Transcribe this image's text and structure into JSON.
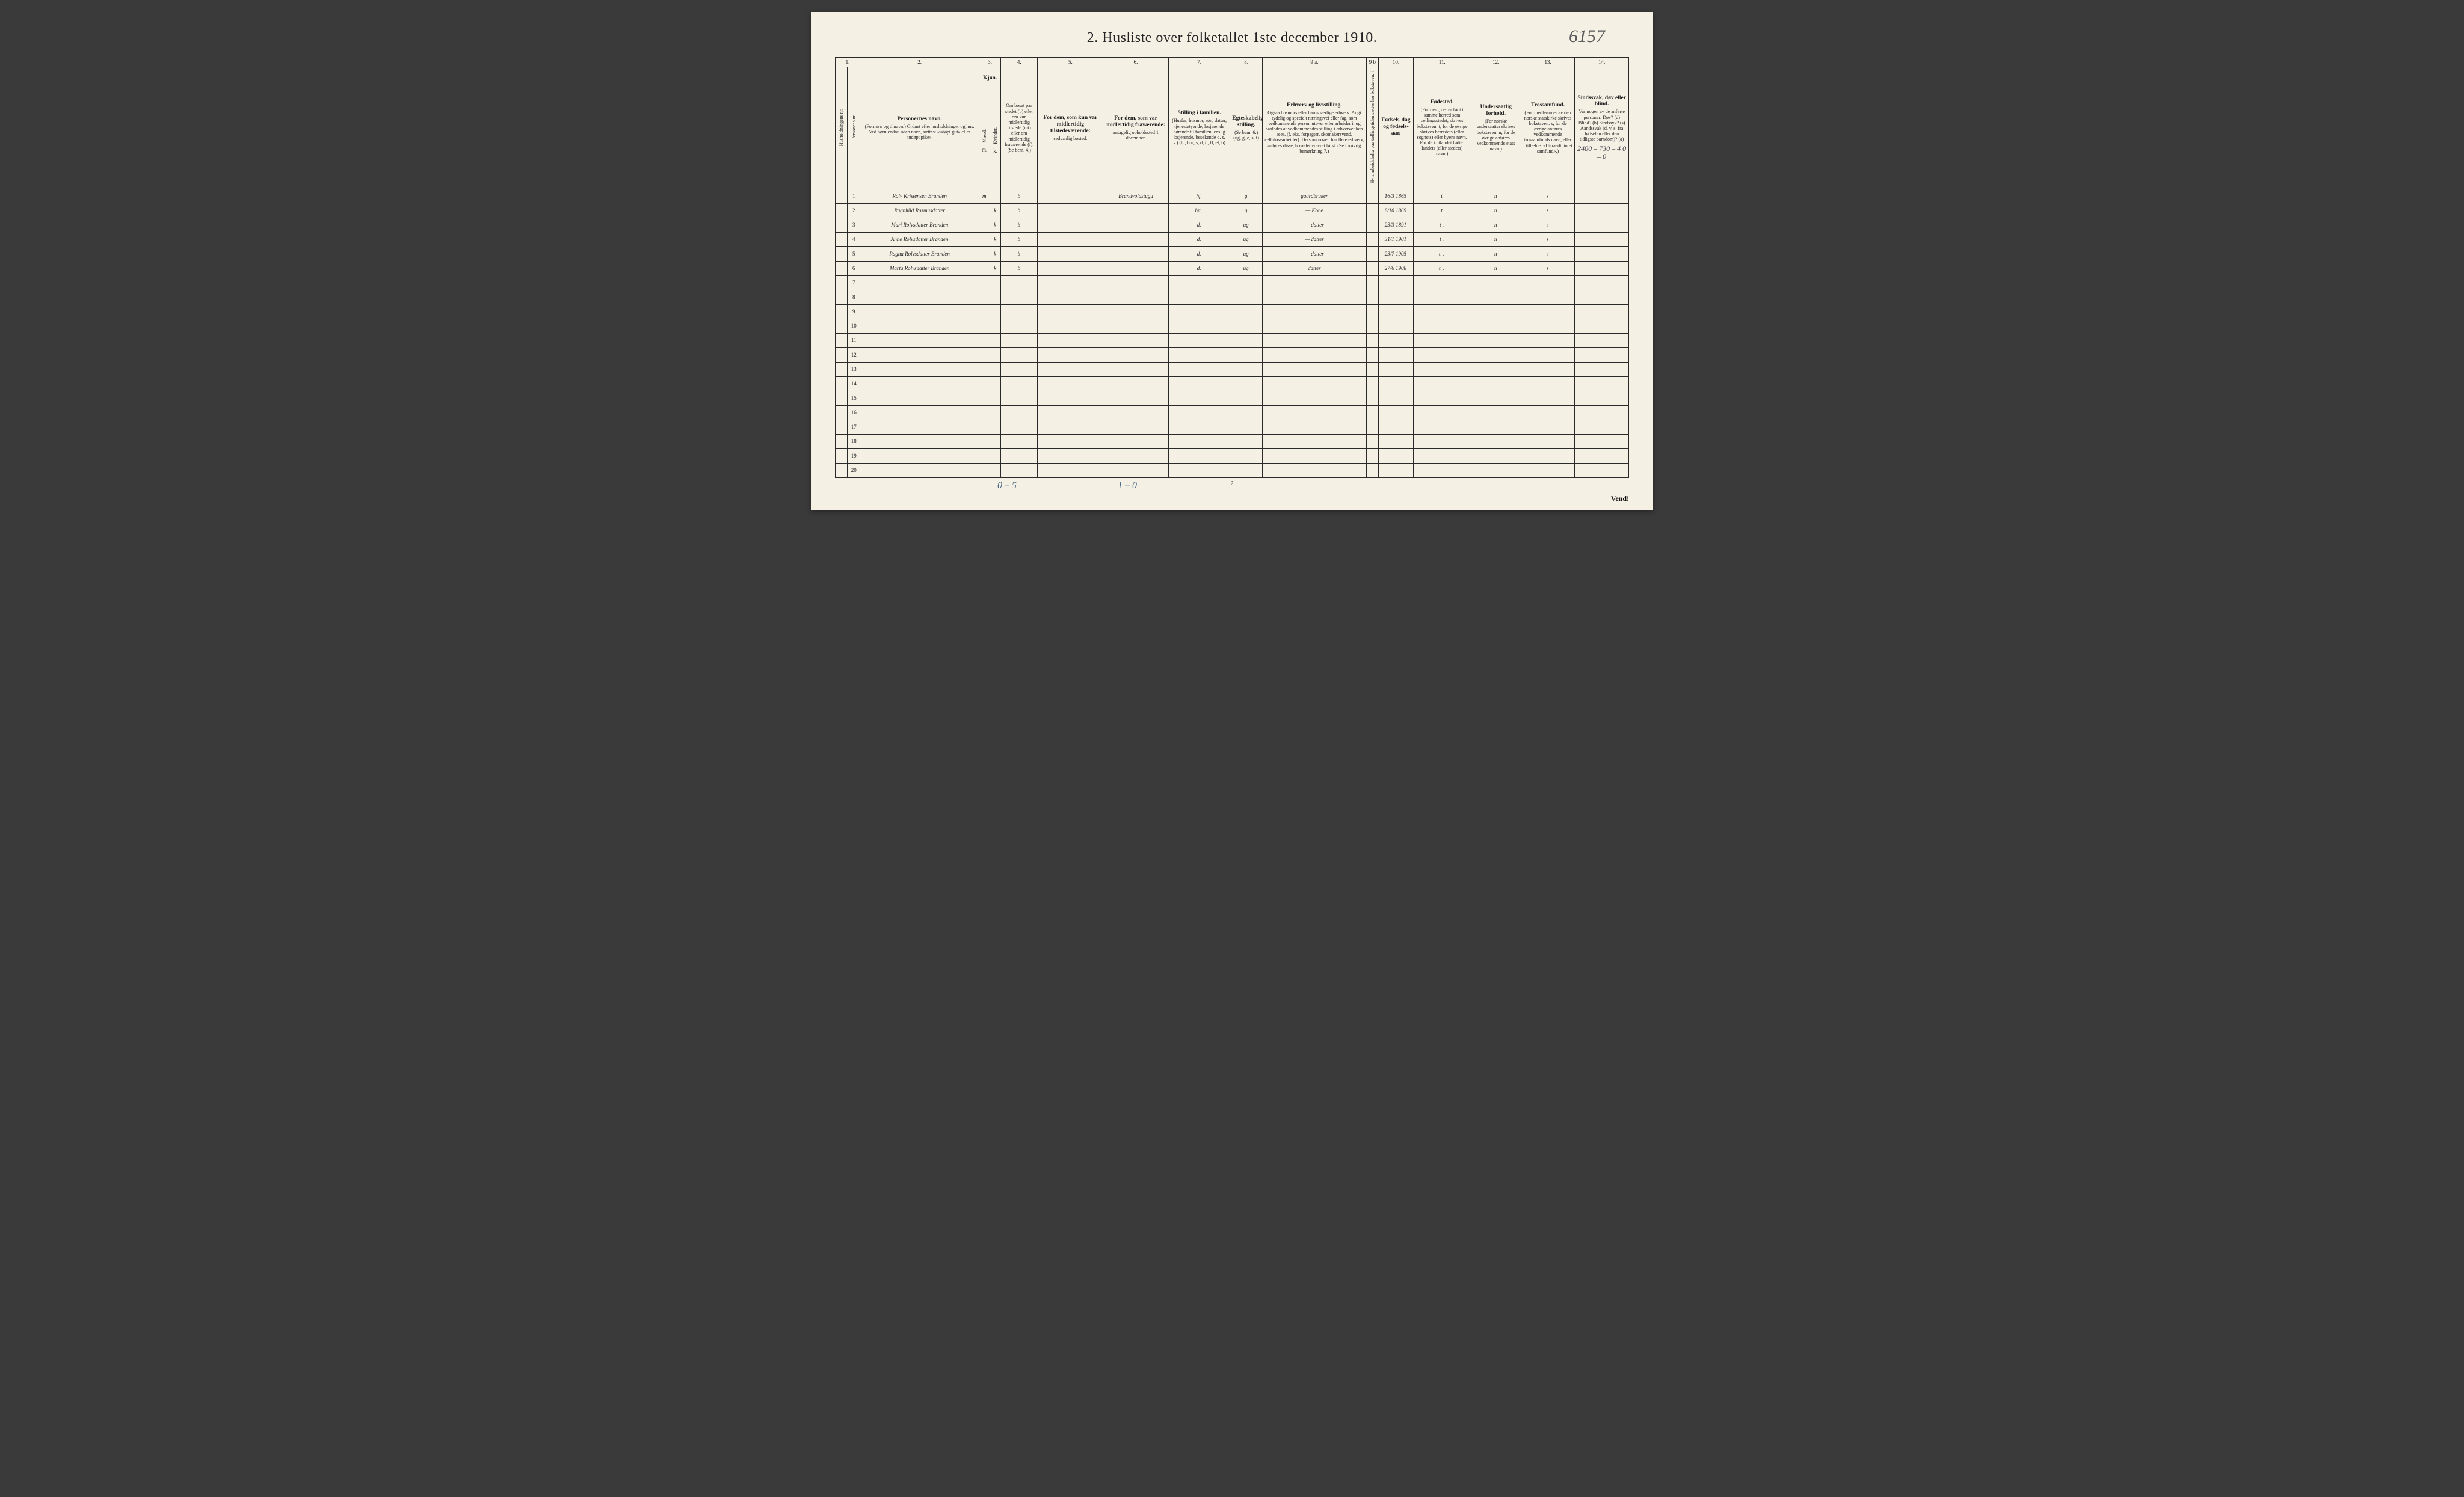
{
  "title": "2.  Husliste over folketallet 1ste december 1910.",
  "handwritten_top_right": "6157",
  "top_corner_annotation": "2400 – 730 – 4\n0 – 0",
  "column_numbers": [
    "1.",
    "2.",
    "3.",
    "4.",
    "5.",
    "6.",
    "7.",
    "8.",
    "9 a.",
    "9 b",
    "10.",
    "11.",
    "12.",
    "13.",
    "14."
  ],
  "headers": {
    "c1a": "Husholdningens nr.",
    "c1b": "Personens nr.",
    "c2_main": "Personernes navn.",
    "c2_sub": "(Fornavn og tilnavn.)\nOrdnet efter husholdninger og hus.\nVed børn endnu uden navn, sættes: «udøpt gut» eller «udøpt pike».",
    "c3_main": "Kjøn.",
    "c3a": "Mænd.",
    "c3b": "Kvinder.",
    "c3_foot_m": "m.",
    "c3_foot_k": "k.",
    "c4_main": "Om bosat paa stedet (b) eller om kun midlertidig tilstede (mt) eller om midlertidig fraværende (f).",
    "c4_sub": "(Se bem. 4.)",
    "c5_main": "For dem, som kun var midlertidig tilstedeværende:",
    "c5_sub": "sedvanlig bosted.",
    "c6_main": "For dem, som var midlertidig fraværende:",
    "c6_sub": "antagelig opholdssted 1 december.",
    "c7_main": "Stilling i familien.",
    "c7_sub": "(Husfar, husmor, søn, datter, tjenestetyende, losjerende hørende til familien, enslig losjerende, besøkende o. s. v.)\n(hf, hm, s, d, tj, fl, el, b)",
    "c8_main": "Egteskabelig stilling.",
    "c8_sub": "(Se bem. 6.)\n(ug, g, e, s, f)",
    "c9a_main": "Erhverv og livsstilling.",
    "c9a_sub": "Ogsaa husmors eller barns særlige erhverv. Angi tydelig og specielt næringsvei eller fag, som vedkommende person utøver eller arbeider i, og saaledes at vedkommendes stilling i erhvervet kan sees, (f. eks. forpagter, skomakersvend, cellulosearbeider). Dersom nogen har flere erhverv, anføres disse, hovederhvervet først.\n(Se forøvrig bemerkning 7.)",
    "c9b": "Hvis arbeidsledig paa tællingstiden sættes her bokstaven: l",
    "c10_main": "Fødsels-dag og fødsels-aar.",
    "c11_main": "Fødested.",
    "c11_sub": "(For dem, der er født i samme herred som tællingsstedet, skrives bokstaven: t; for de øvrige skrives herredets (eller sognets) eller byens navn. For de i utlandet fødte: landets (eller stedets) navn.)",
    "c12_main": "Undersaatlig forhold.",
    "c12_sub": "(For norske undersaatter skrives bokstaven: n; for de øvrige anføres vedkommende stats navn.)",
    "c13_main": "Trossamfund.",
    "c13_sub": "(For medlemmer av den norske statskirke skrives bokstaven: s; for de øvrige anføres vedkommende trossamfunds navn, eller i tilfælde: «Uttraadt, intet samfund».)",
    "c14_main": "Sindssvak, døv eller blind.",
    "c14_sub": "Var nogen av de anførte personer:\nDøv? (d)\nBlind? (b)\nSindssyk? (s)\nAandssvak (d. v. s. fra fødselen eller den tidligste barndom)? (a)"
  },
  "col_widths": {
    "c1a": "1.6%",
    "c1b": "1.6%",
    "c2": "15.5%",
    "c3a": "1.4%",
    "c3b": "1.4%",
    "c4": "4.8%",
    "c5": "8.5%",
    "c6": "8.5%",
    "c7": "8%",
    "c8": "4.2%",
    "c9a": "13.5%",
    "c9b": "1.6%",
    "c10": "4.5%",
    "c11": "7.5%",
    "c12": "6.5%",
    "c13": "7%",
    "c14": "7%"
  },
  "rows": [
    {
      "n": "1",
      "name": "Rolv Kristensen Branden",
      "m": "m",
      "k": "",
      "bf": "b",
      "c5": "",
      "c6": "Brandvoldstugu",
      "fam": "hf.",
      "eg": "g",
      "erh": "gaardbruker",
      "fod": "16/3 1865",
      "fst": "t",
      "und": "n",
      "tro": "s",
      "c14": ""
    },
    {
      "n": "2",
      "name": "Ragnhild Rasmusdatter",
      "m": "",
      "k": "k",
      "bf": "b",
      "c5": "",
      "c6": "",
      "fam": "hm.",
      "eg": "g",
      "erh": "—   Kone",
      "fod": "8/10 1869",
      "fst": "t",
      "und": "n",
      "tro": "s",
      "c14": ""
    },
    {
      "n": "3",
      "name": "Mari Rolvsdatter Branden",
      "m": "",
      "k": "k",
      "bf": "b",
      "c5": "",
      "c6": "",
      "fam": "d.",
      "eg": "ug",
      "erh": "—   datter",
      "fod": "23/3 1891",
      "fst": "t  .",
      "und": "n",
      "tro": "s",
      "c14": ""
    },
    {
      "n": "4",
      "name": "Anne Rolvsdatter Branden",
      "m": "",
      "k": "k",
      "bf": "b",
      "c5": "",
      "c6": "",
      "fam": "d.",
      "eg": "ug",
      "erh": "—   datter",
      "fod": "31/1 1901",
      "fst": "t  .",
      "und": "n",
      "tro": "s",
      "c14": ""
    },
    {
      "n": "5",
      "name": "Ragna Rolvsdatter Branden",
      "m": "",
      "k": "k",
      "bf": "b",
      "c5": "",
      "c6": "",
      "fam": "d.",
      "eg": "ug",
      "erh": "—   datter",
      "fod": "23/7 1905",
      "fst": "t.  .",
      "und": "n",
      "tro": "s",
      "c14": ""
    },
    {
      "n": "6",
      "name": "Marta Rolvsdatter Branden",
      "m": "",
      "k": "k",
      "bf": "b",
      "c5": "",
      "c6": "",
      "fam": "d.",
      "eg": "ug",
      "erh": "datter",
      "fod": "27/6 1908",
      "fst": "t.  .",
      "und": "n",
      "tro": "s",
      "c14": ""
    }
  ],
  "empty_row_numbers": [
    "7",
    "8",
    "9",
    "10",
    "11",
    "12",
    "13",
    "14",
    "15",
    "16",
    "17",
    "18",
    "19",
    "20"
  ],
  "footer": {
    "annot_left": "0 – 5",
    "annot_mid": "1 – 0",
    "page_num": "2",
    "vend": "Vend!"
  }
}
